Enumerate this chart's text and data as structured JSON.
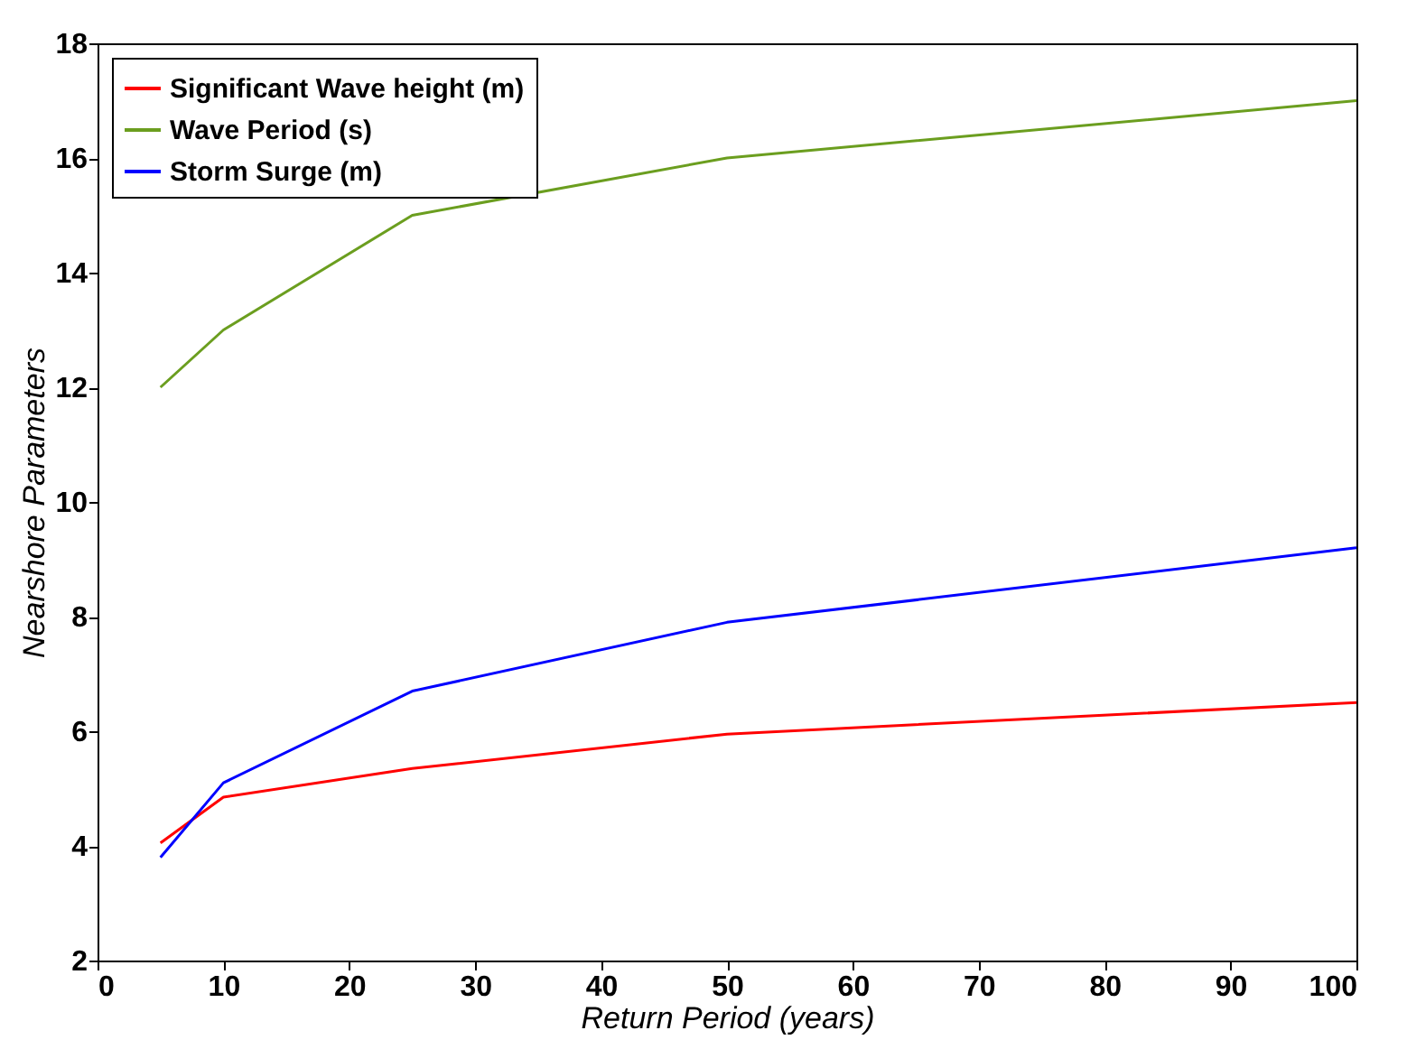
{
  "chart_data": {
    "type": "line",
    "xlabel": "Return Period (years)",
    "ylabel": "Nearshore Parameters",
    "x": [
      5,
      10,
      25,
      50,
      100
    ],
    "series": [
      {
        "name": "Significant Wave height (m)",
        "color": "#ff0000",
        "values": [
          4.05,
          4.85,
          5.35,
          5.95,
          6.5
        ]
      },
      {
        "name": "Wave Period (s)",
        "color": "#6b9e1f",
        "values": [
          12,
          13,
          15,
          16,
          17
        ]
      },
      {
        "name": "Storm Surge (m)",
        "color": "#0000ff",
        "values": [
          3.8,
          5.1,
          6.7,
          7.9,
          9.2
        ]
      }
    ],
    "xlim": [
      0,
      100
    ],
    "xticks": [
      0,
      10,
      20,
      30,
      40,
      50,
      60,
      70,
      80,
      90,
      100
    ],
    "ylim": [
      2,
      18
    ],
    "yticks": [
      2,
      4,
      6,
      8,
      10,
      12,
      14,
      16,
      18
    ],
    "legend": "top left",
    "grid": false,
    "marker": "none",
    "line_style": "solid"
  }
}
